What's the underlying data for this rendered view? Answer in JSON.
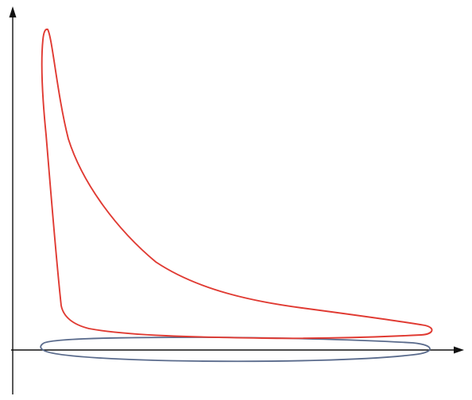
{
  "diagram": {
    "type": "pressure-volume-loop-sketch",
    "axes": {
      "x_arrow": true,
      "y_arrow": true,
      "labels_shown": false
    },
    "loops": [
      {
        "name": "",
        "description_visible": false,
        "color": "#e03a32",
        "shape": "high-pressure-cycle"
      },
      {
        "name": "",
        "description_visible": false,
        "color": "#5a6b8c",
        "shape": "low-pressure-ellipse"
      }
    ],
    "colors": {
      "axis": "#111111",
      "high_loop": "#e03a32",
      "low_loop": "#5a6b8c",
      "background": "#ffffff"
    }
  }
}
